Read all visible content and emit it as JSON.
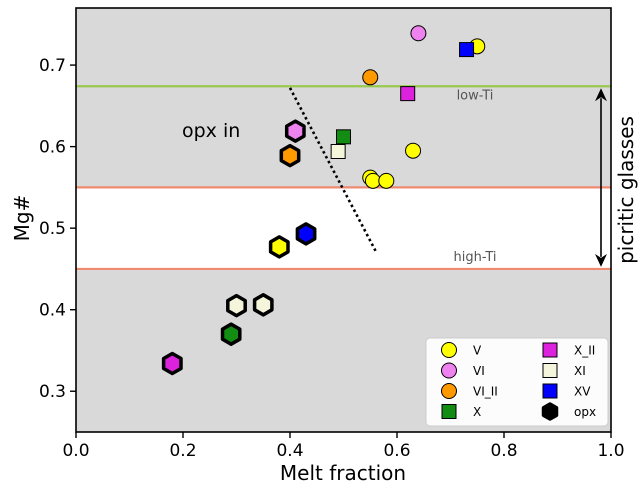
{
  "chart_data": {
    "type": "scatter",
    "xlabel": "Melt fraction",
    "ylabel": "Mg#",
    "xlim": [
      0.0,
      1.0
    ],
    "ylim": [
      0.25,
      0.77
    ],
    "xticks": [
      "0.0",
      "0.2",
      "0.4",
      "0.6",
      "0.8",
      "1.0"
    ],
    "yticks": [
      "0.3",
      "0.4",
      "0.5",
      "0.6",
      "0.7"
    ],
    "xtick_values": [
      0.0,
      0.2,
      0.4,
      0.6,
      0.8,
      1.0
    ],
    "ytick_values": [
      0.3,
      0.4,
      0.5,
      0.6,
      0.7
    ],
    "grid": false,
    "background": "#d9d9d9",
    "white_band": [
      0.45,
      0.55
    ],
    "hlines": [
      {
        "y": 0.674,
        "color": "#99c94c",
        "label": "low-Ti"
      },
      {
        "y": 0.55,
        "color": "#f08a70",
        "label": ""
      },
      {
        "y": 0.45,
        "color": "#f08a70",
        "label": "high-Ti"
      }
    ],
    "bracket": {
      "from": 0.45,
      "to": 0.674,
      "label": "picritic glasses"
    },
    "opx_in_line": {
      "label": "opx in",
      "points": [
        [
          0.4,
          0.672
        ],
        [
          0.56,
          0.472
        ]
      ]
    },
    "legend_position": "lower-right",
    "series": [
      {
        "name": "V",
        "marker": "circle",
        "color": "#ffff00",
        "points": [
          [
            0.75,
            0.723
          ],
          [
            0.55,
            0.562
          ],
          [
            0.555,
            0.558
          ],
          [
            0.58,
            0.558
          ],
          [
            0.63,
            0.595
          ]
        ]
      },
      {
        "name": "VI",
        "marker": "circle",
        "color": "#ee82ee",
        "points": [
          [
            0.64,
            0.739
          ]
        ]
      },
      {
        "name": "VI_II",
        "marker": "circle",
        "color": "#ff9900",
        "points": [
          [
            0.55,
            0.685
          ]
        ]
      },
      {
        "name": "X",
        "marker": "square",
        "color": "#138c13",
        "points": [
          [
            0.5,
            0.612
          ]
        ]
      },
      {
        "name": "X_II",
        "marker": "square",
        "color": "#dd22dd",
        "points": [
          [
            0.62,
            0.665
          ]
        ]
      },
      {
        "name": "XI",
        "marker": "square",
        "color": "#f5f5dc",
        "points": [
          [
            0.49,
            0.594
          ]
        ]
      },
      {
        "name": "XV",
        "marker": "square",
        "color": "#0000ff",
        "points": [
          [
            0.73,
            0.719
          ]
        ]
      },
      {
        "name": "opx",
        "marker": "hexagon",
        "color": "#000000",
        "points": [
          {
            "x": 0.41,
            "y": 0.619,
            "color": "#ee82ee"
          },
          {
            "x": 0.4,
            "y": 0.589,
            "color": "#ff9900"
          },
          {
            "x": 0.38,
            "y": 0.477,
            "color": "#ffff00"
          },
          {
            "x": 0.43,
            "y": 0.493,
            "color": "#0000ff"
          },
          {
            "x": 0.3,
            "y": 0.405,
            "color": "#f5f5dc"
          },
          {
            "x": 0.35,
            "y": 0.406,
            "color": "#f5f5dc"
          },
          {
            "x": 0.29,
            "y": 0.37,
            "color": "#138c13"
          },
          {
            "x": 0.18,
            "y": 0.334,
            "color": "#dd22dd"
          }
        ]
      }
    ]
  }
}
